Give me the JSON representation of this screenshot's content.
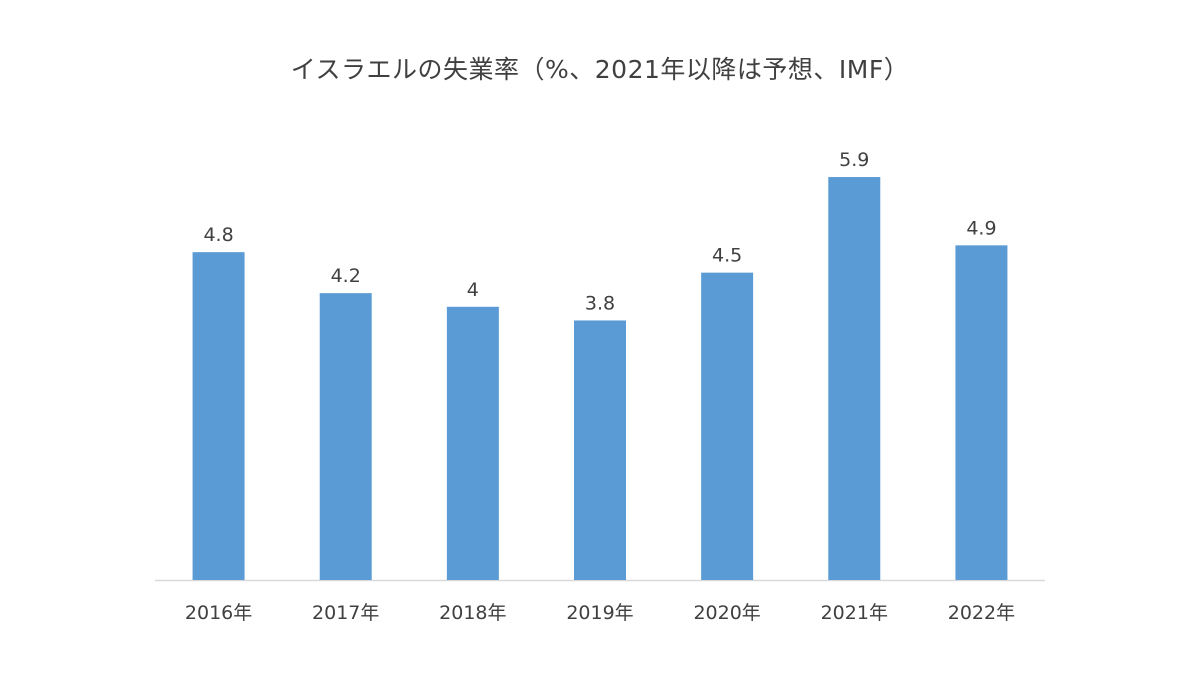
{
  "chart_data": {
    "type": "bar",
    "title": "イスラエルの失業率（%、2021年以降は予想、IMF）",
    "categories": [
      "2016年",
      "2017年",
      "2018年",
      "2019年",
      "2020年",
      "2021年",
      "2022年"
    ],
    "values": [
      4.8,
      4.2,
      4,
      3.8,
      4.5,
      5.9,
      4.9
    ],
    "data_labels": [
      "4.8",
      "4.2",
      "4",
      "3.8",
      "4.5",
      "5.9",
      "4.9"
    ],
    "xlabel": "",
    "ylabel": "",
    "ylim": [
      0,
      6.5
    ],
    "grid": false,
    "legend": "none",
    "bar_color": "#5b9bd5",
    "axis_color": "#d9d9d9"
  }
}
